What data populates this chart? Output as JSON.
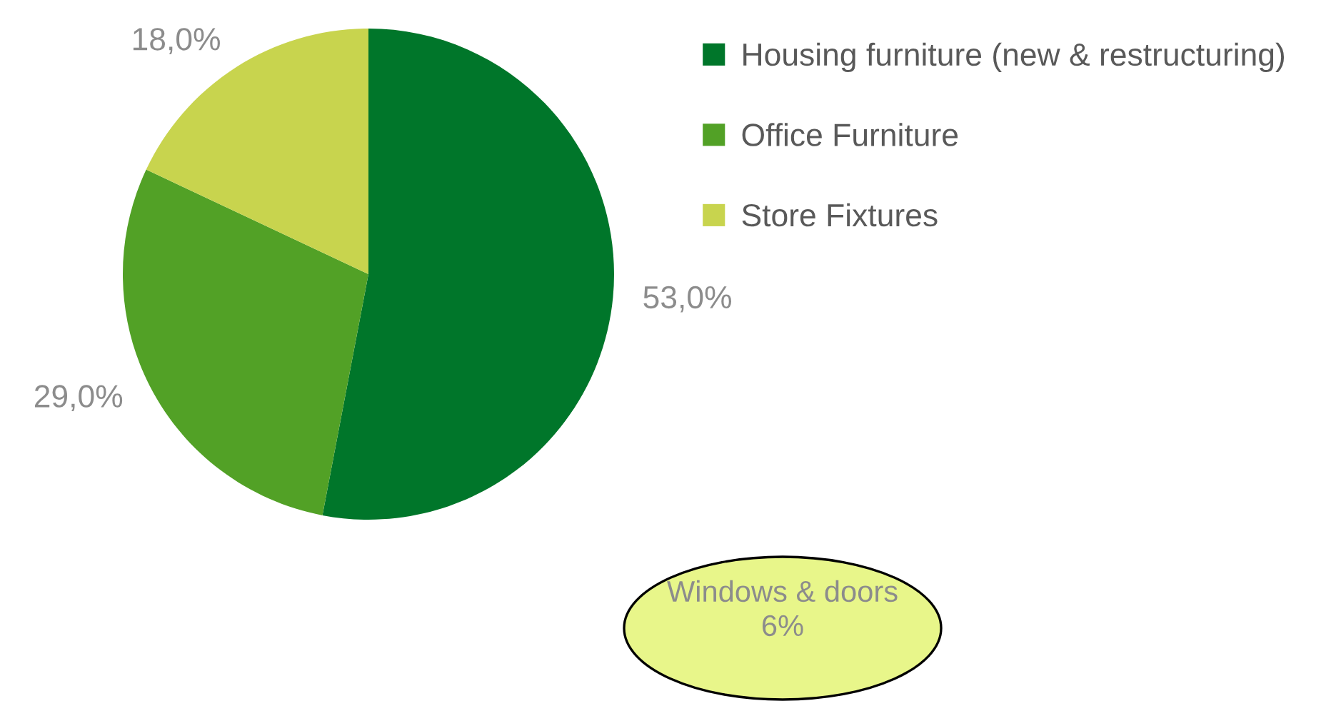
{
  "chart_data": {
    "type": "pie",
    "categories": [
      "Housing furniture (new & restructuring)",
      "Office Furniture",
      "Store Fixtures"
    ],
    "values": [
      53,
      29,
      18
    ],
    "colors": [
      "#00762a",
      "#52a126",
      "#c8d44e"
    ],
    "value_labels": [
      "53,0%",
      "29,0%",
      "18,0%"
    ],
    "legend": "top right",
    "annotations": [
      "Windows & doors\n6%"
    ]
  }
}
